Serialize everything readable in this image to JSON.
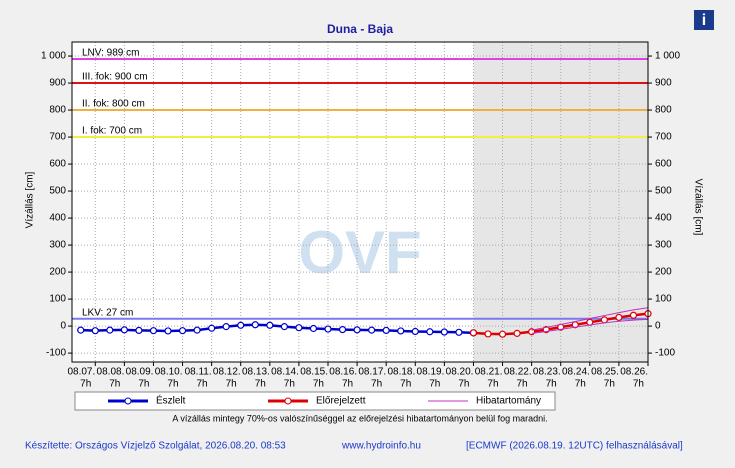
{
  "chart_data": {
    "type": "line",
    "title": "Duna - Baja",
    "ylabel": "Vízállás [cm]",
    "y2label": "Vízállás [cm]",
    "xlim": [
      6.2,
      26
    ],
    "ylim": [
      -133,
      1052
    ],
    "grid": true,
    "xticks": [
      {
        "value": 7,
        "label": "08.07."
      },
      {
        "value": 8,
        "label": "08.08."
      },
      {
        "value": 9,
        "label": "08.09."
      },
      {
        "value": 10,
        "label": "08.10."
      },
      {
        "value": 11,
        "label": "08.11."
      },
      {
        "value": 12,
        "label": "08.12."
      },
      {
        "value": 13,
        "label": "08.13."
      },
      {
        "value": 14,
        "label": "08.14."
      },
      {
        "value": 15,
        "label": "08.15."
      },
      {
        "value": 16,
        "label": "08.16."
      },
      {
        "value": 17,
        "label": "08.17."
      },
      {
        "value": 18,
        "label": "08.18."
      },
      {
        "value": 19,
        "label": "08.19."
      },
      {
        "value": 20,
        "label": "08.20."
      },
      {
        "value": 21,
        "label": "08.21."
      },
      {
        "value": 22,
        "label": "08.22."
      },
      {
        "value": 23,
        "label": "08.23."
      },
      {
        "value": 24,
        "label": "08.24."
      },
      {
        "value": 25,
        "label": "08.25."
      },
      {
        "value": 26,
        "label": "08.26."
      }
    ],
    "xtick_hour": "7h",
    "yticks": [
      -100,
      0,
      100,
      200,
      300,
      400,
      500,
      600,
      700,
      800,
      900,
      {
        "value": 1000,
        "label": "1 000"
      }
    ],
    "levels": [
      {
        "label": "LNV: 989 cm",
        "value": 989,
        "color": "#e040e0"
      },
      {
        "label": "III. fok: 900 cm",
        "value": 900,
        "color": "#dd1111"
      },
      {
        "label": "II. fok: 800 cm",
        "value": 800,
        "color": "#f0b040"
      },
      {
        "label": "I. fok: 700 cm",
        "value": 700,
        "color": "#f0f040"
      },
      {
        "label": "LKV: 27 cm",
        "value": 27,
        "color": "#7a7af0"
      }
    ],
    "series": [
      {
        "name": "Észlelt",
        "color": "#0000cc",
        "x": [
          6.5,
          7,
          7.5,
          8,
          8.5,
          9,
          9.5,
          10,
          10.5,
          11,
          11.5,
          12,
          12.5,
          13,
          13.5,
          14,
          14.5,
          15,
          15.5,
          16,
          16.5,
          17,
          17.5,
          18,
          18.5,
          19,
          19.5,
          20
        ],
        "values": [
          -15,
          -17,
          -15,
          -14,
          -16,
          -17,
          -18,
          -17,
          -15,
          -8,
          -2,
          3,
          5,
          3,
          -2,
          -6,
          -9,
          -11,
          -13,
          -14,
          -15,
          -16,
          -18,
          -20,
          -21,
          -22,
          -23,
          -25
        ]
      },
      {
        "name": "Előrejelzett",
        "color": "#dd0000",
        "x": [
          20,
          20.5,
          21,
          21.5,
          22,
          22.5,
          23,
          23.5,
          24,
          24.5,
          25,
          25.5,
          26
        ],
        "values": [
          -25,
          -29,
          -30,
          -27,
          -21,
          -13,
          -4,
          5,
          14,
          23,
          32,
          40,
          46
        ]
      },
      {
        "name": "Hibatartomány",
        "color": "#c030c0",
        "x": [
          22,
          22.5,
          23,
          23.5,
          24,
          24.5,
          25,
          25.5,
          26
        ],
        "values": [
          -15,
          -5,
          6,
          17,
          28,
          39,
          50,
          60,
          68
        ],
        "lower": [
          -27,
          -20,
          -12,
          -4,
          4,
          12,
          18,
          22,
          25
        ]
      }
    ],
    "note": "A vízállás mintegy 70%-os valószínűséggel az előrejelzési hibatartományon belül fog maradni.",
    "watermark": "OVF"
  },
  "footer": {
    "author": "Készítette: Országos Vízjelző Szolgálat, 2026.08.20. 08:53",
    "url": "www.hydroinfo.hu",
    "source": "[ECMWF (2026.08.19. 12UTC) felhasználásával]"
  }
}
